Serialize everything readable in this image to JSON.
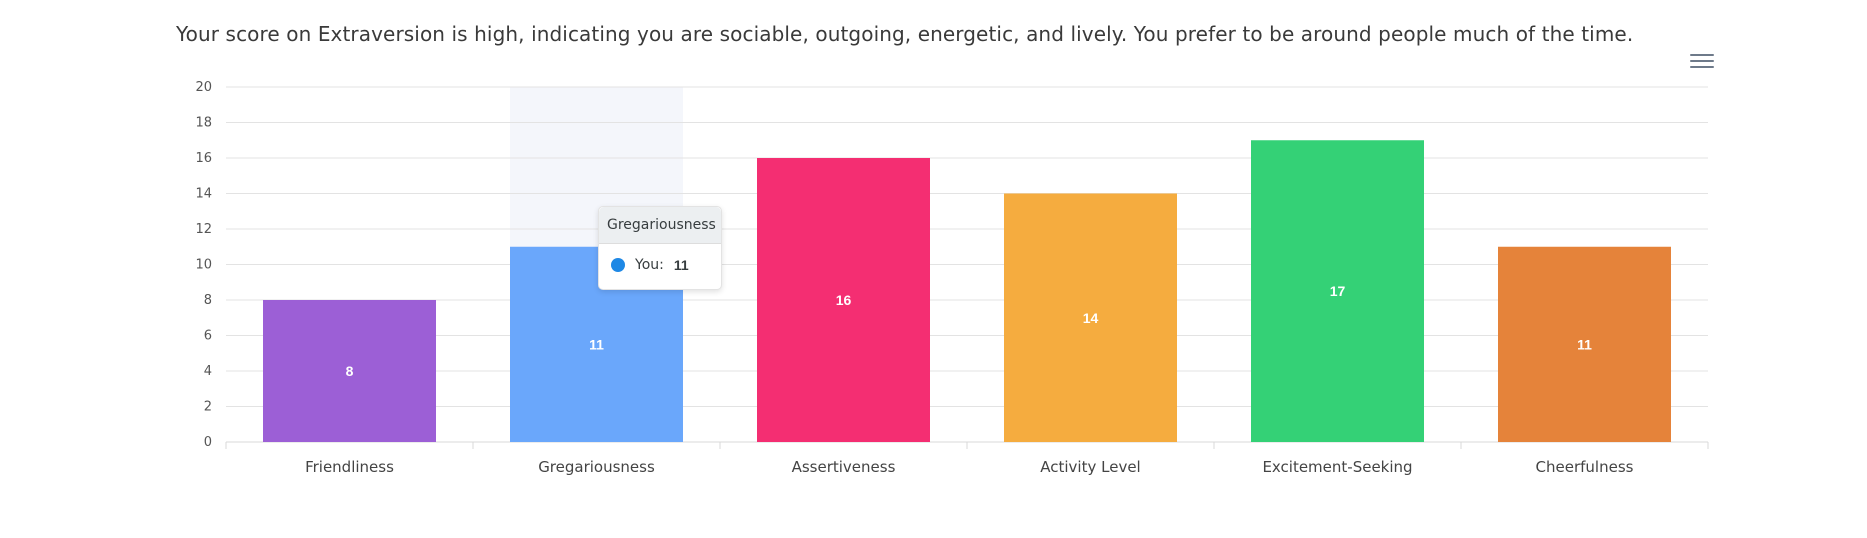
{
  "description": "Your score on Extraversion is high, indicating you are sociable, outgoing, energetic, and lively. You prefer to be around people much of the time.",
  "toolbar": {
    "menu_icon": "hamburger-menu-icon"
  },
  "tooltip": {
    "title": "Gregariousness",
    "series_label": "You:",
    "value": "11",
    "marker_color": "#1e88e5"
  },
  "chart_data": {
    "type": "bar",
    "categories": [
      "Friendliness",
      "Gregariousness",
      "Assertiveness",
      "Activity Level",
      "Excitement-Seeking",
      "Cheerfulness"
    ],
    "series": [
      {
        "name": "You",
        "values": [
          8,
          11,
          16,
          14,
          17,
          11
        ]
      }
    ],
    "colors": [
      "#9c5fd6",
      "#6aa7fb",
      "#f42e72",
      "#f5ac3f",
      "#34d176",
      "#e5833a"
    ],
    "highlighted_category": "Gregariousness",
    "ylim": [
      0,
      20
    ],
    "yticks": [
      0,
      2,
      4,
      6,
      8,
      10,
      12,
      14,
      16,
      18,
      20
    ],
    "grid": true,
    "data_labels": true
  }
}
